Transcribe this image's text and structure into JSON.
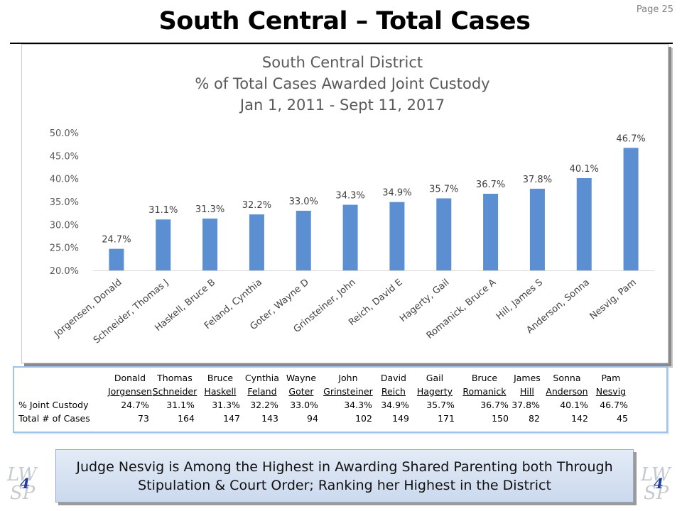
{
  "page": {
    "title": "South Central – Total Cases",
    "page_number": "Page 25"
  },
  "chart_data": {
    "type": "bar",
    "title_lines": [
      "South Central District",
      "% of Total Cases Awarded Joint Custody",
      "Jan 1, 2011 - Sept 11, 2017"
    ],
    "categories": [
      "Jorgensen, Donald",
      "Schneider, Thomas J",
      "Haskell, Bruce B",
      "Feland, Cynthia",
      "Goter, Wayne D",
      "Grinsteiner, John",
      "Reich, David E",
      "Hagerty, Gail",
      "Romanick, Bruce A",
      "Hill, James S",
      "Anderson, Sonna",
      "Nesvig, Pam"
    ],
    "values": [
      24.7,
      31.1,
      31.3,
      32.2,
      33.0,
      34.3,
      34.9,
      35.7,
      36.7,
      37.8,
      40.1,
      46.7
    ],
    "value_labels": [
      "24.7%",
      "31.1%",
      "31.3%",
      "32.2%",
      "33.0%",
      "34.3%",
      "34.9%",
      "35.7%",
      "36.7%",
      "37.8%",
      "40.1%",
      "46.7%"
    ],
    "ylim": [
      20,
      50
    ],
    "yticks": [
      20,
      25,
      30,
      35,
      40,
      45,
      50
    ],
    "ytick_labels": [
      "20.0%",
      "25.0%",
      "30.0%",
      "35.0%",
      "40.0%",
      "45.0%",
      "50.0%"
    ],
    "bar_color": "#5b8fd1",
    "grid": false
  },
  "table": {
    "first_names": [
      "Donald",
      "Thomas",
      "Bruce",
      "Cynthia",
      "Wayne",
      "John",
      "David",
      "Gail",
      "Bruce",
      "James",
      "Sonna",
      "Pam"
    ],
    "last_names": [
      "Jorgensen",
      "Schneider",
      "Haskell",
      "Feland",
      "Goter",
      "Grinsteiner",
      "Reich",
      "Hagerty",
      "Romanick",
      "Hill",
      "Anderson",
      "Nesvig"
    ],
    "rows": [
      {
        "label": "% Joint Custody",
        "values": [
          "24.7%",
          "31.1%",
          "31.3%",
          "32.2%",
          "33.0%",
          "34.3%",
          "34.9%",
          "35.7%",
          "36.7%",
          "37.8%",
          "40.1%",
          "46.7%"
        ]
      },
      {
        "label": "Total # of Cases",
        "values": [
          "73",
          "164",
          "147",
          "143",
          "94",
          "102",
          "149",
          "171",
          "150",
          "82",
          "142",
          "45"
        ]
      }
    ]
  },
  "callout": {
    "line1": "Judge Nesvig is Among the Highest in Awarding Shared Parenting both Through",
    "line2": "Stipulation & Court Order; Ranking her Highest in the District"
  },
  "logo": {
    "line1": "LW",
    "line2": "SP",
    "mark": "4"
  }
}
